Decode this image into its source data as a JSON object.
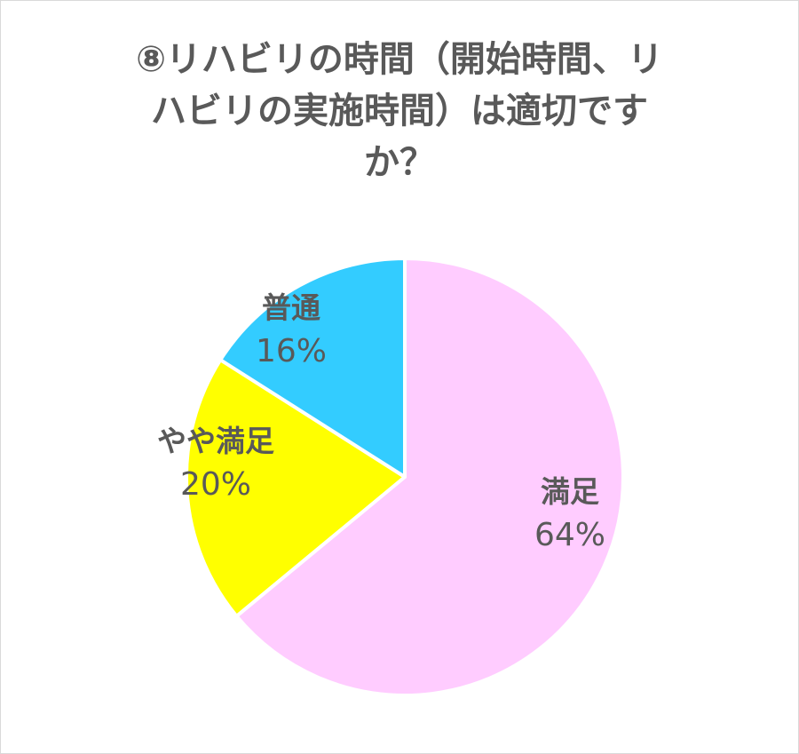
{
  "chart_data": {
    "type": "pie",
    "title_lines": [
      "⑧リハビリの時間（開始時間、リ",
      "ハビリの実施時間）は適切です",
      "か？"
    ],
    "slices": [
      {
        "label": "満足",
        "value": 64,
        "value_label": "64%",
        "color": "#ffccff"
      },
      {
        "label": "やや満足",
        "value": 20,
        "value_label": "20%",
        "color": "#ffff00"
      },
      {
        "label": "普通",
        "value": 16,
        "value_label": "16%",
        "color": "#33ccff"
      }
    ],
    "start_angle": "12 o'clock",
    "direction": "clockwise",
    "legend": "none"
  }
}
